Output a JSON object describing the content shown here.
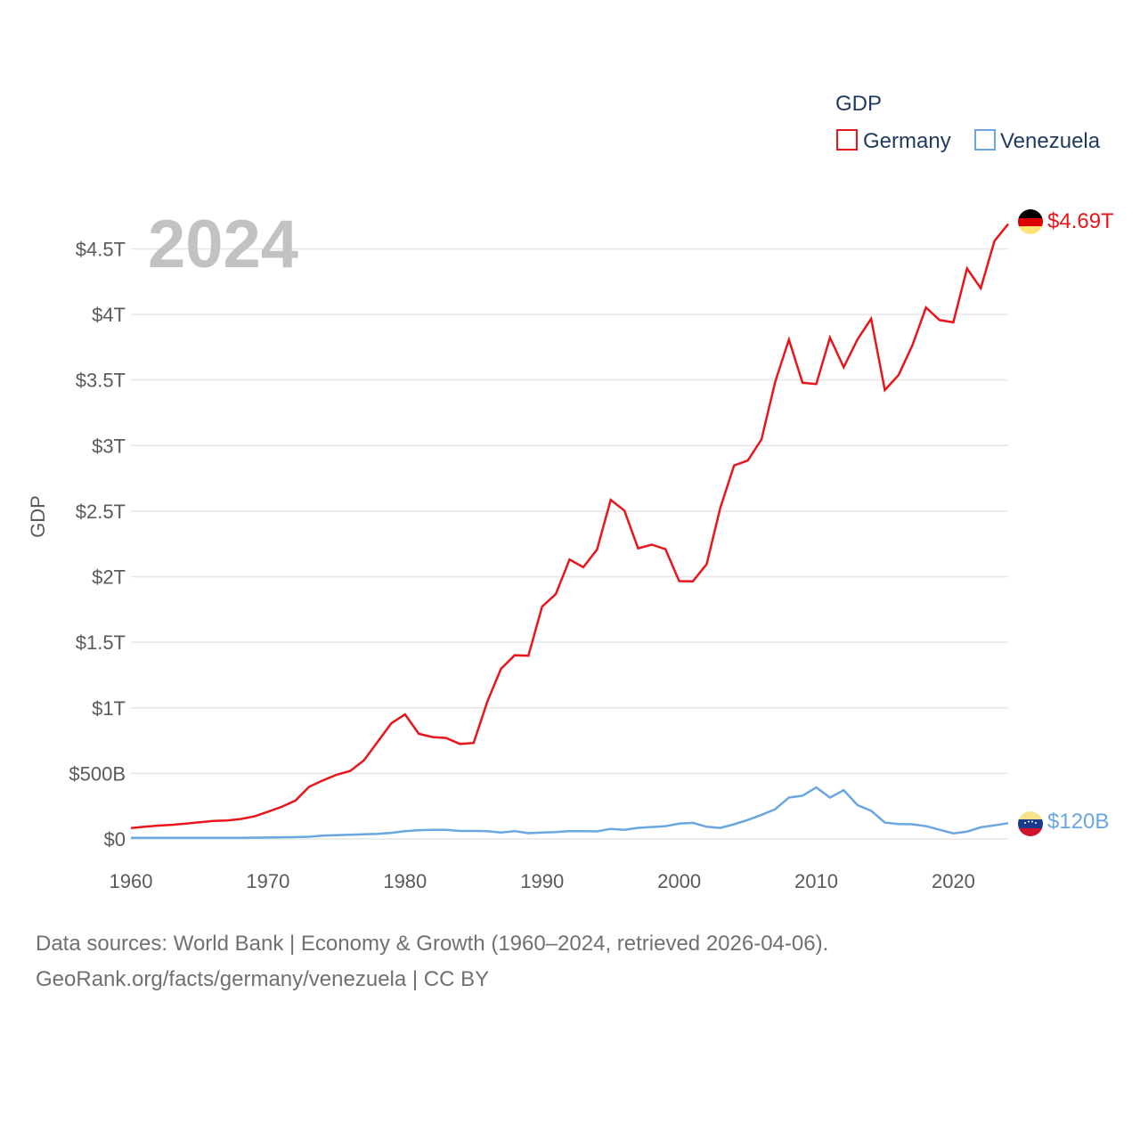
{
  "chart_data": {
    "type": "line",
    "legend_title": "GDP",
    "ylabel": "GDP",
    "year_label": "2024",
    "x": [
      1960,
      1961,
      1962,
      1963,
      1964,
      1965,
      1966,
      1967,
      1968,
      1969,
      1970,
      1971,
      1972,
      1973,
      1974,
      1975,
      1976,
      1977,
      1978,
      1979,
      1980,
      1981,
      1982,
      1983,
      1984,
      1985,
      1986,
      1987,
      1988,
      1989,
      1990,
      1991,
      1992,
      1993,
      1994,
      1995,
      1996,
      1997,
      1998,
      1999,
      2000,
      2001,
      2002,
      2003,
      2004,
      2005,
      2006,
      2007,
      2008,
      2009,
      2010,
      2011,
      2012,
      2013,
      2014,
      2015,
      2016,
      2017,
      2018,
      2019,
      2020,
      2021,
      2022,
      2023,
      2024
    ],
    "xlim": [
      1960,
      2024
    ],
    "xticks": [
      1960,
      1970,
      1980,
      1990,
      2000,
      2010,
      2020
    ],
    "xtick_labels": [
      "1960",
      "1970",
      "1980",
      "1990",
      "2000",
      "2010",
      "2020"
    ],
    "ylim": [
      0,
      4.7
    ],
    "yticks": [
      0,
      0.5,
      1,
      1.5,
      2,
      2.5,
      3,
      3.5,
      4,
      4.5
    ],
    "ytick_labels": [
      "$0",
      "$500B",
      "$1T",
      "$1.5T",
      "$2T",
      "$2.5T",
      "$3T",
      "$3.5T",
      "$4T",
      "$4.5T"
    ],
    "y_unit": "trillion USD",
    "series": [
      {
        "name": "Germany",
        "color": "#e8151b",
        "end_label": "$4.69T",
        "values": [
          0.083,
          0.093,
          0.102,
          0.108,
          0.117,
          0.128,
          0.137,
          0.141,
          0.152,
          0.172,
          0.208,
          0.245,
          0.293,
          0.398,
          0.446,
          0.49,
          0.519,
          0.599,
          0.74,
          0.882,
          0.95,
          0.802,
          0.777,
          0.77,
          0.725,
          0.732,
          1.048,
          1.297,
          1.401,
          1.398,
          1.772,
          1.868,
          2.131,
          2.072,
          2.206,
          2.586,
          2.504,
          2.216,
          2.245,
          2.21,
          1.966,
          1.965,
          2.095,
          2.526,
          2.848,
          2.886,
          3.047,
          3.486,
          3.808,
          3.479,
          3.469,
          3.824,
          3.597,
          3.808,
          3.967,
          3.424,
          3.537,
          3.763,
          4.053,
          3.957,
          3.94,
          4.35,
          4.2,
          4.56,
          4.69
        ]
      },
      {
        "name": "Venezuela",
        "color": "#6aa6e0",
        "end_label": "$120B",
        "values": [
          0.008,
          0.008,
          0.009,
          0.009,
          0.009,
          0.008,
          0.008,
          0.009,
          0.009,
          0.01,
          0.011,
          0.013,
          0.014,
          0.017,
          0.026,
          0.029,
          0.032,
          0.036,
          0.039,
          0.047,
          0.059,
          0.067,
          0.07,
          0.069,
          0.061,
          0.061,
          0.059,
          0.049,
          0.06,
          0.044,
          0.049,
          0.053,
          0.06,
          0.06,
          0.058,
          0.077,
          0.07,
          0.085,
          0.091,
          0.098,
          0.117,
          0.123,
          0.093,
          0.084,
          0.112,
          0.145,
          0.184,
          0.227,
          0.316,
          0.33,
          0.393,
          0.316,
          0.372,
          0.259,
          0.215,
          0.125,
          0.114,
          0.112,
          0.098,
          0.07,
          0.043,
          0.056,
          0.089,
          0.104,
          0.12
        ]
      }
    ]
  },
  "legend": {
    "title": "GDP",
    "items": [
      "Germany",
      "Venezuela"
    ]
  },
  "footer": {
    "line1": "Data sources: World Bank | Economy & Growth (1960–2024, retrieved 2026-04-06).",
    "line2": "GeoRank.org/facts/germany/venezuela | CC BY"
  },
  "flags": [
    {
      "name": "germany-flag-icon",
      "colors": [
        "#000000",
        "#dd0000",
        "#ffce00"
      ]
    },
    {
      "name": "venezuela-flag-icon",
      "colors": [
        "#f4d03f",
        "#1b3a8a",
        "#cf142b"
      ]
    }
  ]
}
